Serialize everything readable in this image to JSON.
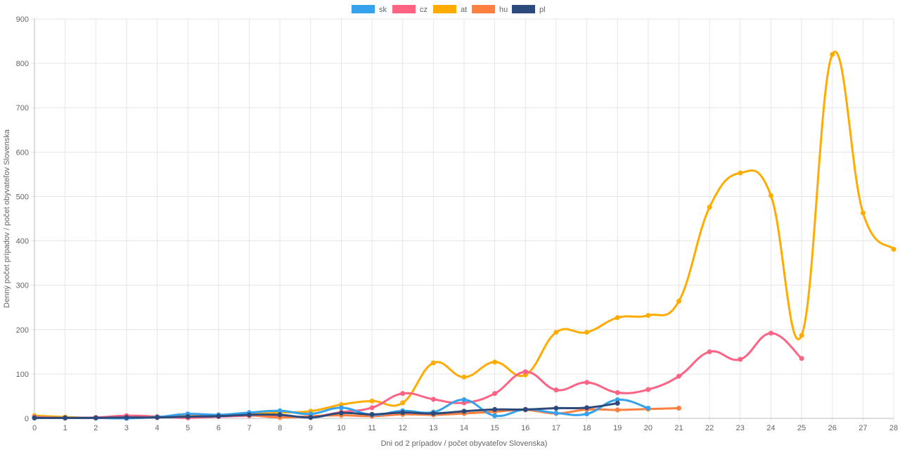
{
  "chart_data": {
    "type": "line",
    "title": "",
    "xlabel": "Dni od 2 prípadov / počet obyvateľov Slovenska)",
    "ylabel": "Denný počet prípadov / počet obyvateľov Slovenska",
    "xlim": [
      0,
      28
    ],
    "ylim": [
      0,
      900
    ],
    "x_ticks": [
      0,
      1,
      2,
      3,
      4,
      5,
      6,
      7,
      8,
      9,
      10,
      11,
      12,
      13,
      14,
      15,
      16,
      17,
      18,
      19,
      20,
      21,
      22,
      23,
      24,
      25,
      26,
      27,
      28
    ],
    "y_ticks": [
      0,
      100,
      200,
      300,
      400,
      500,
      600,
      700,
      800,
      900
    ],
    "grid": true,
    "legend_position": "top-center",
    "series": [
      {
        "name": "sk",
        "color": "#36a2eb",
        "values": [
          1,
          1,
          1,
          0,
          3,
          10,
          8,
          13,
          17,
          10,
          24,
          8,
          17,
          14,
          42,
          6,
          20,
          12,
          10,
          42,
          23
        ]
      },
      {
        "name": "cz",
        "color": "#ff6384",
        "values": [
          3,
          1,
          2,
          6,
          4,
          1,
          4,
          6,
          6,
          3,
          14,
          24,
          56,
          43,
          35,
          56,
          105,
          64,
          81,
          58,
          65,
          95,
          150,
          133,
          192,
          135
        ]
      },
      {
        "name": "at",
        "color": "#ffab00",
        "values": [
          6,
          3,
          1,
          2,
          4,
          5,
          6,
          9,
          13,
          16,
          31,
          39,
          35,
          125,
          93,
          127,
          98,
          194,
          194,
          227,
          232,
          264,
          476,
          553,
          502,
          187,
          820,
          463,
          381
        ]
      },
      {
        "name": "hu",
        "color": "#ff7f40",
        "values": [
          1,
          1,
          1,
          1,
          2,
          4,
          6,
          7,
          2,
          5,
          7,
          5,
          9,
          8,
          11,
          15,
          19,
          11,
          20,
          19,
          21,
          23
        ]
      },
      {
        "name": "pl",
        "color": "#2c4a7c",
        "values": [
          1,
          1,
          1,
          2,
          2,
          4,
          5,
          8,
          8,
          2,
          12,
          9,
          13,
          11,
          16,
          20,
          20,
          23,
          24,
          34
        ]
      }
    ]
  }
}
